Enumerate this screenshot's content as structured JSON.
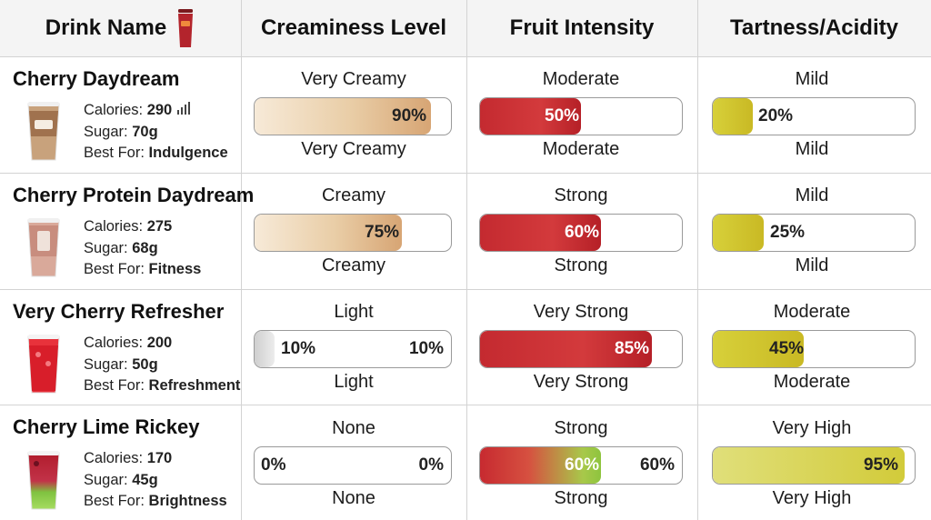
{
  "headers": {
    "drink_name": "Drink Name",
    "creaminess": "Creamines Level",
    "fruit": "Fruit Intensity",
    "tartness": "Tartness/Acidity"
  },
  "labels": {
    "calories": "Calories:",
    "sugar": "Sugar:",
    "best_for": "Best For:"
  },
  "colors": {
    "cream_fill": "#e8c9a1",
    "fruit_fill": "#c8272e",
    "tart_fill": "#d1c533",
    "header_bg": "#f4f4f4"
  },
  "rows": [
    {
      "name": "Cherry Daydream",
      "calories": "290",
      "sugar": "70g",
      "best_for": "Indulgence",
      "cream": {
        "label_top": "Very Creamy",
        "label_bottom": "Very Creamy",
        "value": 90,
        "pct": "90%",
        "pct_left": ""
      },
      "fruit": {
        "label_top": "Moderate",
        "label_bottom": "Moderate",
        "value": 50,
        "pct": "50%",
        "pct_right": ""
      },
      "tart": {
        "label_top": "Mild",
        "label_bottom": "Mild",
        "value": 20,
        "pct": "20%"
      }
    },
    {
      "name": "Cherry Protein Daydream",
      "calories": "275",
      "sugar": "68g",
      "best_for": "Fitness",
      "cream": {
        "label_top": "Creamy",
        "label_bottom": "Creamy",
        "value": 75,
        "pct": "75%",
        "pct_left": ""
      },
      "fruit": {
        "label_top": "Strong",
        "label_bottom": "Strong",
        "value": 60,
        "pct": "60%",
        "pct_right": ""
      },
      "tart": {
        "label_top": "Mild",
        "label_bottom": "Mild",
        "value": 25,
        "pct": "25%"
      }
    },
    {
      "name": "Very Cherry Refresher",
      "calories": "200",
      "sugar": "50g",
      "best_for": "Refreshment",
      "cream": {
        "label_top": "Light",
        "label_bottom": "Light",
        "value": 10,
        "pct": "10%",
        "pct_left": "10%"
      },
      "fruit": {
        "label_top": "Very Strong",
        "label_bottom": "Very Strong",
        "value": 85,
        "pct": "85%",
        "pct_right": ""
      },
      "tart": {
        "label_top": "Moderate",
        "label_bottom": "Moderate",
        "value": 45,
        "pct": "45%"
      }
    },
    {
      "name": "Cherry Lime Rickey",
      "calories": "170",
      "sugar": "45g",
      "best_for": "Brightness",
      "cream": {
        "label_top": "None",
        "label_bottom": "None",
        "value": 0,
        "pct": "0%",
        "pct_left": "0%"
      },
      "fruit": {
        "label_top": "Strong",
        "label_bottom": "Strong",
        "value": 60,
        "pct": "60%",
        "pct_right": "60%"
      },
      "tart": {
        "label_top": "Very High",
        "label_bottom": "Very High",
        "value": 95,
        "pct": "95%"
      }
    }
  ]
}
